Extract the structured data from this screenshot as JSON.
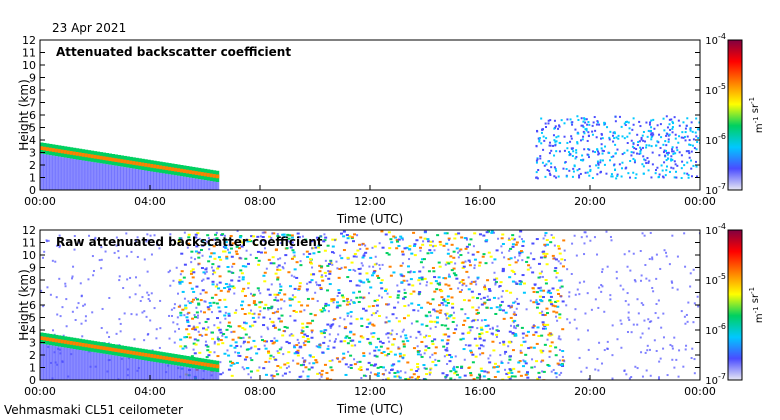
{
  "date": "23 Apr 2021",
  "footer": "Vehmasmaki CL51 ceilometer",
  "chart_data": [
    {
      "type": "heatmap",
      "title": "Attenuated backscatter coefficient",
      "xlabel": "Time (UTC)",
      "ylabel": "Height (km)",
      "xlim": [
        "00:00",
        "24:00"
      ],
      "ylim": [
        0,
        12
      ],
      "xticks": [
        "00:00",
        "04:00",
        "08:00",
        "12:00",
        "16:00",
        "20:00",
        "00:00"
      ],
      "yticks": [
        "0",
        "1",
        "2",
        "3",
        "4",
        "5",
        "6",
        "7",
        "8",
        "9",
        "10",
        "11",
        "12"
      ],
      "colorbar": {
        "scale": "log",
        "range": [
          1e-07,
          0.0001
        ],
        "ticks": [
          "10-7",
          "10-6",
          "10-5",
          "10-4"
        ],
        "unit": "m-1 sr-1",
        "colors": [
          "#e8e8f4",
          "#4a4cff",
          "#00c8ff",
          "#00d060",
          "#ffff00",
          "#ff8000",
          "#ff0000",
          "#800040"
        ]
      },
      "features": [
        {
          "kind": "boundary_layer_descending",
          "hours": [
            0.0,
            6.5
          ],
          "height_km": [
            3.3,
            1.0
          ]
        },
        {
          "kind": "scattered_clouds",
          "hours": [
            18.0,
            24.0
          ],
          "height_km": [
            1.0,
            6.0
          ]
        }
      ]
    },
    {
      "type": "heatmap",
      "title": "Raw attenuated backscatter coefficient",
      "xlabel": "Time (UTC)",
      "ylabel": "Height (km)",
      "xlim": [
        "00:00",
        "24:00"
      ],
      "ylim": [
        0,
        12
      ],
      "xticks": [
        "00:00",
        "04:00",
        "08:00",
        "12:00",
        "16:00",
        "20:00",
        "00:00"
      ],
      "yticks": [
        "0",
        "1",
        "2",
        "3",
        "4",
        "5",
        "6",
        "7",
        "8",
        "9",
        "10",
        "11",
        "12"
      ],
      "colorbar": {
        "scale": "log",
        "range": [
          1e-07,
          0.0001
        ],
        "ticks": [
          "10-7",
          "10-6",
          "10-5",
          "10-4"
        ],
        "unit": "m-1 sr-1",
        "colors": [
          "#e8e8f4",
          "#4a4cff",
          "#00c8ff",
          "#00d060",
          "#ffff00",
          "#ff8000",
          "#ff0000",
          "#800040"
        ]
      },
      "features": [
        {
          "kind": "daytime_noise",
          "hours": [
            5.0,
            19.0
          ],
          "height_km": [
            0,
            12
          ]
        },
        {
          "kind": "boundary_layer_descending",
          "hours": [
            0.0,
            6.5
          ],
          "height_km": [
            3.3,
            1.0
          ]
        }
      ]
    }
  ]
}
